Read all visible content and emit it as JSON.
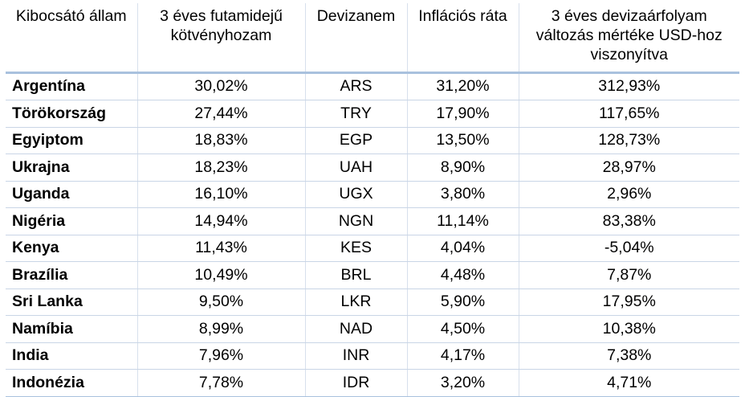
{
  "table": {
    "headers": [
      "Kibocsátó állam",
      "3 éves futamidejű kötvényhozam",
      "Devizanem",
      "Inflációs ráta",
      "3 éves devizaárfolyam változás mértéke USD-hoz viszonyítva"
    ],
    "rows": [
      [
        "Argentína",
        "30,02%",
        "ARS",
        "31,20%",
        "312,93%"
      ],
      [
        "Törökország",
        "27,44%",
        "TRY",
        "17,90%",
        "117,65%"
      ],
      [
        "Egyiptom",
        "18,83%",
        "EGP",
        "13,50%",
        "128,73%"
      ],
      [
        "Ukrajna",
        "18,23%",
        "UAH",
        "8,90%",
        "28,97%"
      ],
      [
        "Uganda",
        "16,10%",
        "UGX",
        "3,80%",
        "2,96%"
      ],
      [
        "Nigéria",
        "14,94%",
        "NGN",
        "11,14%",
        "83,38%"
      ],
      [
        "Kenya",
        "11,43%",
        "KES",
        "4,04%",
        "-5,04%"
      ],
      [
        "Brazília",
        "10,49%",
        "BRL",
        "4,48%",
        "7,87%"
      ],
      [
        "Sri Lanka",
        "9,50%",
        "LKR",
        "5,90%",
        "17,95%"
      ],
      [
        "Namíbia",
        "8,99%",
        "NAD",
        "4,50%",
        "10,38%"
      ],
      [
        "India",
        "7,96%",
        "INR",
        "4,17%",
        "7,38%"
      ],
      [
        "Indonézia",
        "7,78%",
        "IDR",
        "3,20%",
        "4,71%"
      ]
    ]
  },
  "colors": {
    "header_rule": "#a9c1de",
    "grid": "#d7e0ec"
  }
}
